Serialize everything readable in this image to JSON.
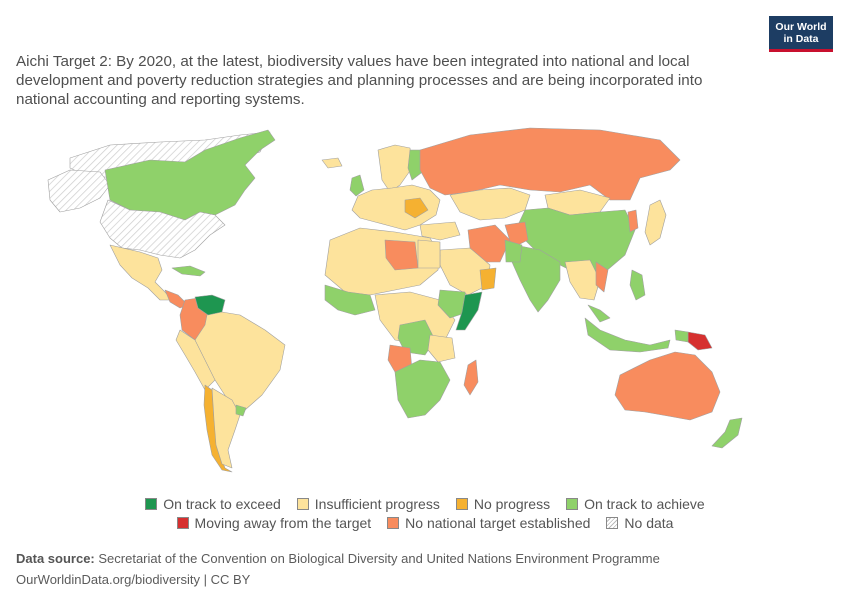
{
  "title": "Aichi Target 2: By 2020, at the latest, biodiversity values have been integrated into national and local development and poverty reduction strategies and planning processes and are being incorporated into national accounting and reporting systems.",
  "logo": {
    "line1": "Our World",
    "line2": "in Data"
  },
  "colors": {
    "exceed": "#1e9650",
    "insufficient": "#fde39c",
    "no_progress": "#f5b131",
    "achieve": "#8fd16a",
    "away": "#d6302f",
    "no_target": "#f88c5e",
    "no_data": "#ffffff",
    "border": "#9a9a9a"
  },
  "legend": [
    {
      "key": "exceed",
      "label": "On track to exceed"
    },
    {
      "key": "insufficient",
      "label": "Insufficient progress"
    },
    {
      "key": "no_progress",
      "label": "No progress"
    },
    {
      "key": "achieve",
      "label": "On track to achieve"
    },
    {
      "key": "away",
      "label": "Moving away from the target"
    },
    {
      "key": "no_target",
      "label": "No national target established"
    },
    {
      "key": "no_data",
      "label": "No data"
    }
  ],
  "footer": {
    "source_label": "Data source:",
    "source_text": "Secretariat of the Convention on Biological Diversity and United Nations Environment Programme",
    "url": "OurWorldinData.org/biodiversity | CC BY"
  }
}
